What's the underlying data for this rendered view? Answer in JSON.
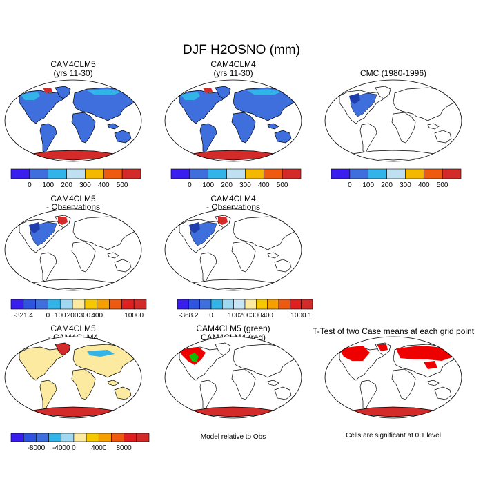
{
  "title": "DJF H2OSNO (mm)",
  "colors": {
    "ocean": "#ffffff",
    "land": "#ffffff",
    "coast": "#000000",
    "snow_blue": "#3f6fdc",
    "snow_dark": "#1f3fae",
    "snow_light": "#33b4e8",
    "antarctica": "#d32a2a",
    "diff_fill": "#fbeaa0",
    "sig_red": "#ee0000",
    "sig_green": "#10c000"
  },
  "panels": [
    {
      "id": "p1",
      "title1": "CAM4CLM5",
      "title2": "(yrs 11-30)",
      "kind": "full"
    },
    {
      "id": "p2",
      "title1": "CAM4CLM4",
      "title2": "(yrs 11-30)",
      "kind": "full"
    },
    {
      "id": "p3",
      "title1": "CMC (1980-1996)",
      "title2": "",
      "kind": "obs"
    },
    {
      "id": "p4",
      "title1": "CAM4CLM5",
      "title2": "- Observations",
      "kind": "obs"
    },
    {
      "id": "p5",
      "title1": "CAM4CLM4",
      "title2": "- Observations",
      "kind": "obs"
    },
    {
      "id": "p7",
      "title1": "CAM4CLM5",
      "title2": "- CAM4CLM4",
      "kind": "diff"
    },
    {
      "id": "p8",
      "title1": "CAM4CLM5 (green)",
      "title2": "CAM4CLM4 (red)",
      "kind": "rel"
    },
    {
      "id": "p9",
      "title1": "T-Test of two Case means at each grid point",
      "title2": "",
      "kind": "ttest"
    }
  ],
  "notes": {
    "p8": "Model relative to Obs",
    "p9": "Cells are significant at 0.1 level"
  },
  "colorbars": {
    "abs": {
      "colors": [
        "#3a1ef0",
        "#3f6fdc",
        "#33b4e8",
        "#bfe0f0",
        "#f5b800",
        "#ee5a10",
        "#d32a2a"
      ],
      "labels": [
        "0",
        "100",
        "200",
        "300",
        "400",
        "500"
      ]
    },
    "bias1": {
      "colors": [
        "#3a1ef0",
        "#2f55e0",
        "#3f6fdc",
        "#33b4e8",
        "#9fd8f0",
        "#fbeaa0",
        "#f5c800",
        "#f5a000",
        "#ee5a10",
        "#e02020",
        "#d32a2a"
      ],
      "labels": [
        "-321.4",
        "0",
        "100",
        "200",
        "300",
        "400",
        "10000"
      ]
    },
    "bias2": {
      "colors": [
        "#3a1ef0",
        "#2f55e0",
        "#3f6fdc",
        "#33b4e8",
        "#9fd8f0",
        "#c8e6f5",
        "#fbeaa0",
        "#f5c800",
        "#f5a000",
        "#ee5a10",
        "#e02020",
        "#d32a2a"
      ],
      "labels": [
        "-368.2",
        "0",
        "100",
        "200",
        "300",
        "400",
        "1000.1"
      ]
    },
    "diff": {
      "colors": [
        "#3a1ef0",
        "#2f55e0",
        "#3f6fdc",
        "#33b4e8",
        "#9fd8f0",
        "#fbeaa0",
        "#f5c800",
        "#f5a000",
        "#ee5a10",
        "#e02020",
        "#d32a2a"
      ],
      "labels": [
        "-8000",
        "-4000",
        "0",
        "4000",
        "8000"
      ]
    }
  }
}
